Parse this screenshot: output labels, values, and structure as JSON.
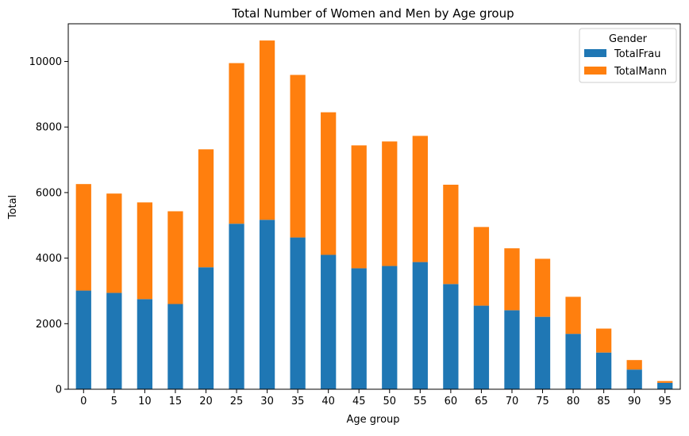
{
  "chart_data": {
    "type": "bar",
    "stacked": true,
    "title": "Total Number of Women and Men by Age group",
    "xlabel": "Age group",
    "ylabel": "Total",
    "ylim": [
      0,
      11150
    ],
    "yticks": [
      0,
      2000,
      4000,
      6000,
      8000,
      10000
    ],
    "categories": [
      "0",
      "5",
      "10",
      "15",
      "20",
      "25",
      "30",
      "35",
      "40",
      "45",
      "50",
      "55",
      "60",
      "65",
      "70",
      "75",
      "80",
      "85",
      "90",
      "95"
    ],
    "series": [
      {
        "name": "TotalFrau",
        "color": "#1f77b4",
        "values": [
          3010,
          2940,
          2750,
          2600,
          3720,
          5050,
          5170,
          4630,
          4100,
          3690,
          3760,
          3880,
          3210,
          2550,
          2410,
          2210,
          1690,
          1120,
          600,
          195
        ]
      },
      {
        "name": "TotalMann",
        "color": "#ff7f0e",
        "values": [
          3250,
          3030,
          2950,
          2830,
          3600,
          4900,
          5470,
          4960,
          4350,
          3750,
          3800,
          3850,
          3030,
          2400,
          1890,
          1770,
          1130,
          730,
          290,
          55
        ]
      }
    ],
    "legend": {
      "title": "Gender",
      "position": "top-right"
    },
    "grid": false
  }
}
